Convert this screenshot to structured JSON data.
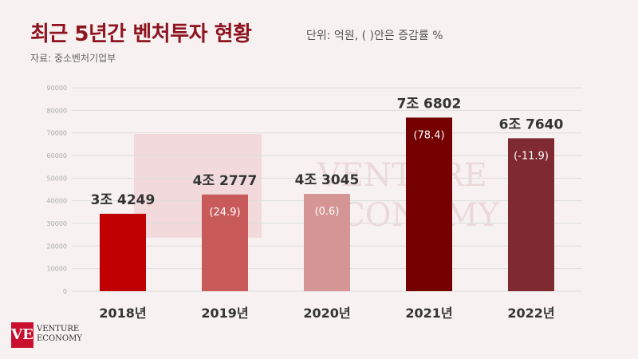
{
  "header": {
    "title": "최근 5년간 벤처투자 현황",
    "unit_note": "단위: 억원, ( )안은 증감률 %",
    "source": "자료: 중소벤처기업부"
  },
  "branding": {
    "logo_mark": "VE",
    "logo_line1": "VENTURE",
    "logo_line2": "ECONOMY",
    "watermark_line1": "VENTURE",
    "watermark_line2": "ECONOMY"
  },
  "chart_data": {
    "type": "bar",
    "categories": [
      "2018년",
      "2019년",
      "2020년",
      "2021년",
      "2022년"
    ],
    "values": [
      34249,
      42777,
      43045,
      76802,
      67640
    ],
    "value_labels": [
      "3조 4249",
      "4조 2777",
      "4조 3045",
      "7조 6802",
      "6조 7640"
    ],
    "change_labels": [
      "",
      "(24.9)",
      "(0.6)",
      "(78.4)",
      "(-11.9)"
    ],
    "bar_colors": [
      "#c00000",
      "#c95a5a",
      "#d59595",
      "#740000",
      "#7f2a31"
    ],
    "yticks": [
      "0",
      "10000",
      "20000",
      "30000",
      "40000",
      "50000",
      "60000",
      "70000",
      "80000",
      "90000"
    ],
    "ylim": [
      0,
      90000
    ],
    "grid": true
  }
}
